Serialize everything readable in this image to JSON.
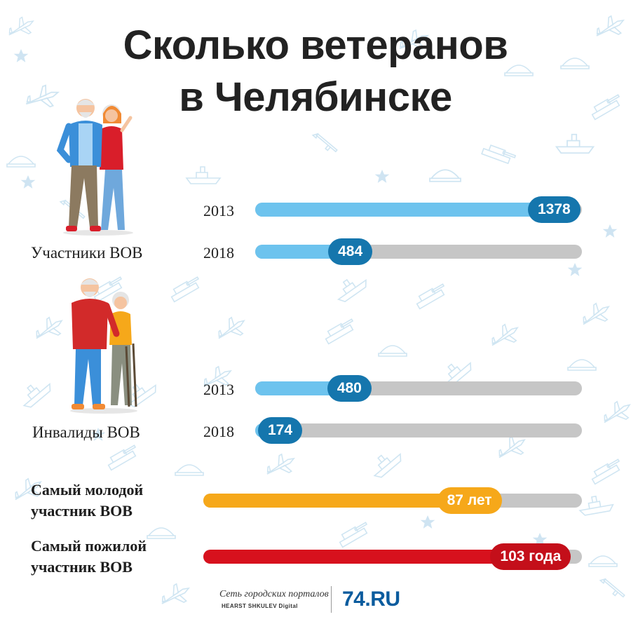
{
  "title_line1": "Сколько ветеранов",
  "title_line2": "в Челябинске",
  "chart_data": {
    "type": "bar",
    "groups": [
      {
        "label": "Участники ВОВ",
        "rows": [
          {
            "year": "2013",
            "value": 1378,
            "display": "1378"
          },
          {
            "year": "2018",
            "value": 484,
            "display": "484"
          }
        ]
      },
      {
        "label": "Инвалиды ВОВ",
        "rows": [
          {
            "year": "2013",
            "value": 480,
            "display": "480"
          },
          {
            "year": "2018",
            "value": 174,
            "display": "174"
          }
        ]
      }
    ],
    "ages": [
      {
        "label_line1": "Самый молодой",
        "label_line2": "участник ВОВ",
        "value": 87,
        "display": "87 лет"
      },
      {
        "label_line1": "Самый пожилой",
        "label_line2": "участник ВОВ",
        "value": 103,
        "display": "103 года"
      }
    ]
  },
  "colors": {
    "track": "#c6c6c6",
    "bar_blue": "#6dc3ee",
    "pill_blue": "#1576ad",
    "bar_orange": "#f6a81a",
    "bar_red": "#d7111d",
    "pattern": "#bfdcee"
  },
  "footer": {
    "network_line1": "Сеть городских порталов",
    "network_line2": "HEARST SHKULEV Digital",
    "logo": "74.RU"
  },
  "icons": [
    "plane-icon",
    "tank-icon",
    "ship-icon",
    "cap-icon",
    "star-icon",
    "rifle-icon"
  ]
}
